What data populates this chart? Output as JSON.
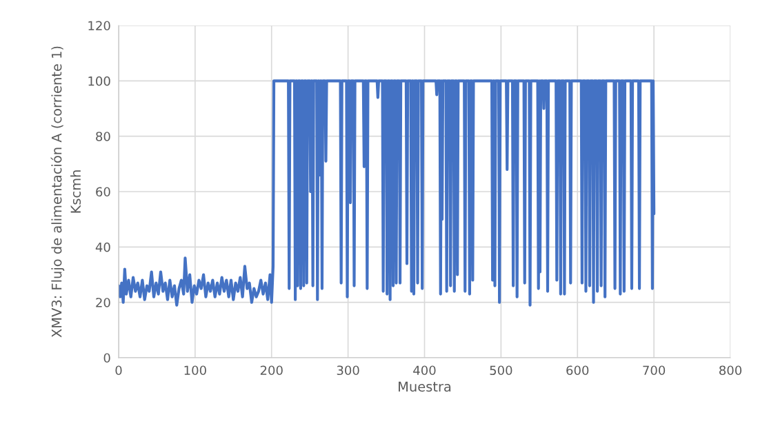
{
  "chart_data": {
    "type": "line",
    "xlabel": "Muestra",
    "ylabel": "XMV3: Flujo de alimentación A (corriente 1)\nKscmh",
    "xlim": [
      0,
      800
    ],
    "xticks": [
      0,
      100,
      200,
      300,
      400,
      500,
      600,
      700,
      800
    ],
    "ylim": [
      0,
      120
    ],
    "yticks": [
      0,
      20,
      40,
      60,
      80,
      100,
      120
    ],
    "grid": true,
    "marker": "none",
    "line_style": "solid",
    "legend": false,
    "series": [
      {
        "color": "#4472c4",
        "x": [
          0,
          2,
          4,
          6,
          8,
          10,
          13,
          16,
          19,
          22,
          25,
          28,
          31,
          34,
          37,
          40,
          43,
          46,
          49,
          52,
          55,
          58,
          61,
          64,
          67,
          70,
          73,
          76,
          79,
          82,
          85,
          87,
          90,
          93,
          96,
          99,
          102,
          105,
          108,
          111,
          114,
          117,
          120,
          123,
          126,
          129,
          132,
          135,
          138,
          141,
          144,
          147,
          150,
          153,
          156,
          159,
          162,
          165,
          168,
          171,
          174,
          177,
          180,
          183,
          186,
          189,
          192,
          195,
          198,
          200,
          202,
          203,
          222,
          223,
          224,
          230,
          231,
          232,
          233,
          234,
          235,
          237,
          238,
          239,
          241,
          242,
          243,
          245,
          246,
          247,
          250,
          251,
          252,
          253,
          254,
          255,
          259,
          260,
          261,
          262,
          263,
          264,
          265,
          266,
          267,
          270,
          271,
          272,
          290,
          291,
          292,
          298,
          299,
          300,
          302,
          303,
          304,
          307,
          308,
          309,
          320,
          321,
          322,
          324,
          325,
          326,
          338,
          339,
          340,
          345,
          346,
          347,
          350,
          351,
          352,
          354,
          355,
          356,
          358,
          359,
          360,
          362,
          363,
          364,
          367,
          368,
          369,
          376,
          377,
          378,
          382,
          383,
          384,
          385,
          386,
          387,
          390,
          391,
          392,
          396,
          397,
          398,
          415,
          416,
          417,
          420,
          421,
          422,
          422,
          423,
          424,
          428,
          429,
          430,
          433,
          434,
          435,
          438,
          439,
          440,
          442,
          443,
          444,
          452,
          453,
          454,
          458,
          459,
          460,
          462,
          463,
          464,
          488,
          489,
          490,
          491,
          492,
          493,
          497,
          498,
          499,
          507,
          508,
          509,
          515,
          516,
          517,
          520,
          521,
          522,
          530,
          531,
          532,
          537,
          538,
          539,
          548,
          549,
          550,
          550,
          551,
          552,
          555,
          556,
          557,
          560,
          561,
          562,
          572,
          573,
          574,
          577,
          578,
          579,
          582,
          583,
          584,
          590,
          591,
          592,
          605,
          606,
          607,
          610,
          611,
          612,
          615,
          616,
          617,
          620,
          621,
          622,
          625,
          626,
          627,
          630,
          631,
          632,
          635,
          636,
          637,
          648,
          649,
          650,
          655,
          656,
          657,
          660,
          661,
          662,
          670,
          671,
          672,
          680,
          681,
          682,
          697,
          698,
          699,
          700
        ],
        "values": [
          26,
          22,
          27,
          20,
          32,
          23,
          28,
          22,
          29,
          24,
          27,
          22,
          28,
          21,
          26,
          24,
          31,
          22,
          27,
          23,
          31,
          24,
          27,
          21,
          28,
          22,
          26,
          19,
          25,
          28,
          23,
          36,
          24,
          30,
          20,
          26,
          23,
          28,
          25,
          30,
          22,
          27,
          24,
          28,
          22,
          27,
          23,
          29,
          24,
          28,
          22,
          28,
          21,
          27,
          24,
          29,
          22,
          33,
          25,
          27,
          20,
          25,
          22,
          24,
          28,
          23,
          27,
          21,
          30,
          20,
          33,
          100,
          100,
          25,
          100,
          100,
          21,
          100,
          100,
          26,
          100,
          100,
          25,
          100,
          100,
          26,
          100,
          100,
          27,
          100,
          100,
          60,
          100,
          100,
          26,
          100,
          100,
          21,
          100,
          100,
          66,
          100,
          100,
          25,
          100,
          100,
          71,
          100,
          100,
          27,
          100,
          100,
          22,
          100,
          100,
          56,
          100,
          100,
          26,
          100,
          100,
          69,
          100,
          100,
          25,
          100,
          100,
          94,
          100,
          100,
          24,
          100,
          100,
          23,
          100,
          100,
          21,
          100,
          100,
          26,
          100,
          100,
          27,
          100,
          100,
          27,
          100,
          100,
          34,
          100,
          100,
          24,
          100,
          100,
          23,
          100,
          100,
          27,
          100,
          100,
          25,
          100,
          100,
          95,
          100,
          100,
          23,
          100,
          100,
          50,
          100,
          100,
          24,
          100,
          100,
          26,
          100,
          100,
          24,
          100,
          100,
          30,
          100,
          100,
          24,
          100,
          100,
          23,
          100,
          100,
          28,
          100,
          100,
          28,
          100,
          100,
          26,
          100,
          100,
          20,
          100,
          100,
          68,
          100,
          100,
          26,
          100,
          100,
          22,
          100,
          100,
          27,
          100,
          100,
          19,
          100,
          100,
          25,
          100,
          100,
          31,
          100,
          100,
          90,
          100,
          100,
          24,
          100,
          100,
          28,
          100,
          100,
          23,
          100,
          100,
          23,
          100,
          100,
          27,
          100,
          100,
          27,
          100,
          100,
          24,
          100,
          100,
          26,
          100,
          100,
          20,
          100,
          100,
          24,
          100,
          100,
          26,
          100,
          100,
          22,
          100,
          100,
          25,
          100,
          100,
          23,
          100,
          100,
          24,
          100,
          100,
          25,
          100,
          100,
          25,
          100,
          100,
          25,
          100,
          52
        ]
      }
    ]
  }
}
